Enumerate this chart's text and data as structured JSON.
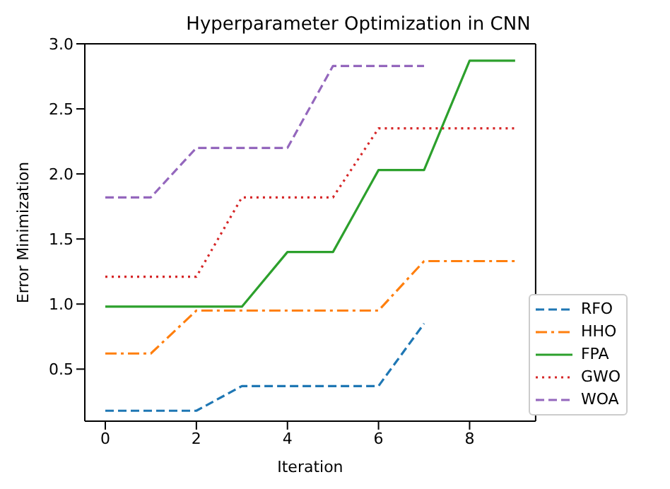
{
  "chart_data": {
    "type": "line",
    "title": "Hyperparameter Optimization in CNN",
    "xlabel": "Iteration",
    "ylabel": "Error Minimization",
    "x": [
      0,
      1,
      2,
      3,
      4,
      5,
      6,
      7,
      8,
      9
    ],
    "xlim": [
      -0.45,
      9.45
    ],
    "xticks": [
      0,
      2,
      4,
      6,
      8
    ],
    "ylim": [
      0.1,
      3.0
    ],
    "yticks": [
      0.5,
      {
        "value": 1,
        "label": "1.0"
      },
      1.5,
      {
        "value": 2,
        "label": "2.0"
      },
      2.5,
      {
        "value": 3,
        "label": "3.0"
      }
    ],
    "grid": false,
    "legend": "bottom right",
    "marker": "none",
    "series": [
      {
        "name": "RFO",
        "color": "#1f77b4",
        "line_style": "dashed",
        "values": [
          0.18,
          0.18,
          0.18,
          0.37,
          0.37,
          0.37,
          0.37,
          0.85,
          null,
          null
        ]
      },
      {
        "name": "HHO",
        "color": "#ff7f0e",
        "line_style": "dashdot",
        "values": [
          0.62,
          0.62,
          0.95,
          0.95,
          0.95,
          0.95,
          0.95,
          1.33,
          1.33,
          1.33
        ]
      },
      {
        "name": "FPA",
        "color": "#2ca02c",
        "line_style": "solid",
        "values": [
          0.98,
          0.98,
          0.98,
          0.98,
          1.4,
          1.4,
          2.03,
          2.03,
          2.87,
          2.87
        ]
      },
      {
        "name": "GWO",
        "color": "#d62728",
        "line_style": "dotted",
        "values": [
          1.21,
          1.21,
          1.21,
          1.82,
          1.82,
          1.82,
          2.35,
          2.35,
          2.35,
          2.35
        ]
      },
      {
        "name": "WOA",
        "color": "#9467bd",
        "line_style": "dashed",
        "values": [
          1.82,
          1.82,
          2.2,
          2.2,
          2.2,
          2.83,
          2.83,
          2.83,
          null,
          null
        ]
      }
    ]
  }
}
